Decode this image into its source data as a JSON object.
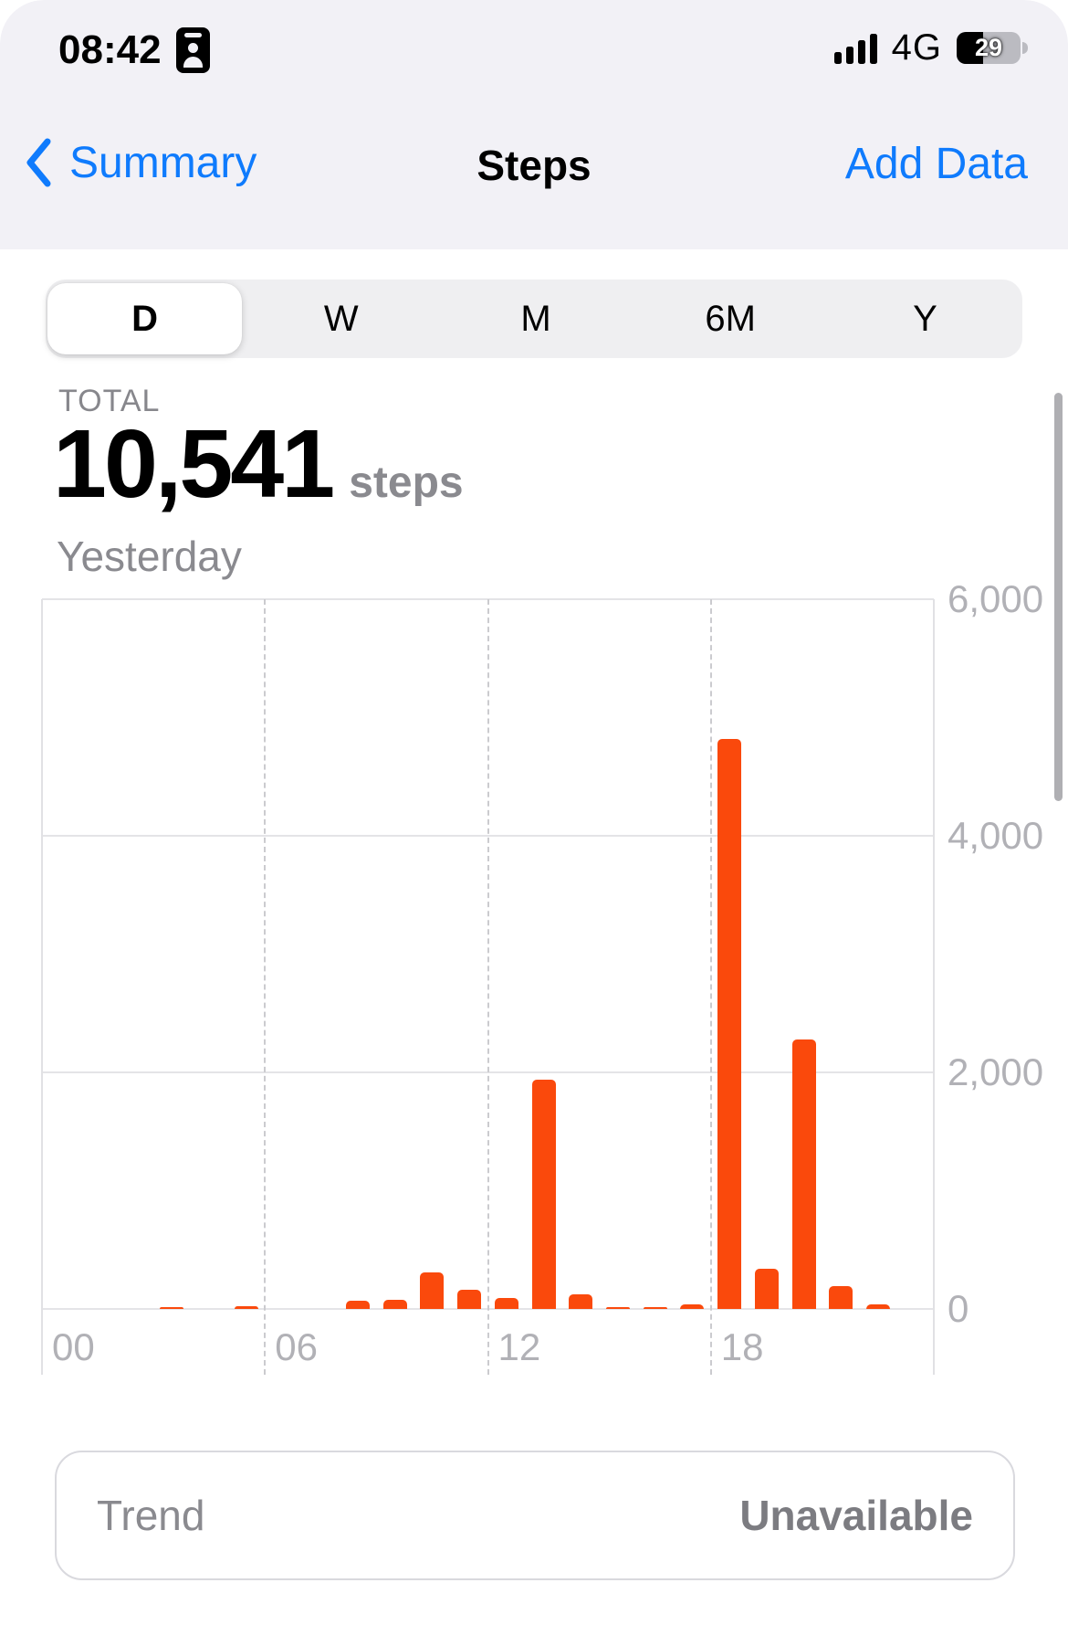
{
  "colors": {
    "accent": "#0F7BFD",
    "bar": "#FA490C",
    "header_background": "#F2F1F6"
  },
  "status_bar": {
    "time": "08:42",
    "network": "4G",
    "battery_percent": "29",
    "icons": [
      "contact-badge-icon",
      "cellular-signal-icon",
      "battery-icon"
    ]
  },
  "nav": {
    "back_label": "Summary",
    "title": "Steps",
    "action_label": "Add Data"
  },
  "segmented": {
    "options": [
      "D",
      "W",
      "M",
      "6M",
      "Y"
    ],
    "selected": "D",
    "selected_index": 0
  },
  "summary": {
    "label": "TOTAL",
    "value": "10,541",
    "unit": "steps",
    "period": "Yesterday"
  },
  "chart_data": {
    "type": "bar",
    "title": "Steps per hour",
    "x_unit": "hour of day",
    "x": [
      0,
      1,
      2,
      3,
      4,
      5,
      6,
      7,
      8,
      9,
      10,
      11,
      12,
      13,
      14,
      15,
      16,
      17,
      18,
      19,
      20,
      21,
      22,
      23
    ],
    "values": [
      0,
      0,
      0,
      15,
      0,
      25,
      0,
      0,
      70,
      80,
      310,
      160,
      90,
      1940,
      120,
      10,
      15,
      35,
      4820,
      340,
      2280,
      195,
      36,
      0
    ],
    "total": 10541,
    "ylim": [
      0,
      6000
    ],
    "y_tick_labels": [
      "0",
      "2,000",
      "4,000",
      "6,000"
    ],
    "y_axis_position": "right",
    "x_tick_hours": [
      0,
      6,
      12,
      18
    ],
    "x_tick_labels": [
      "00",
      "06",
      "12",
      "18"
    ],
    "x_gridline_hours": [
      6,
      12,
      18
    ],
    "grid": true,
    "bar_color": "#FA490C"
  },
  "trend": {
    "label": "Trend",
    "value": "Unavailable"
  }
}
